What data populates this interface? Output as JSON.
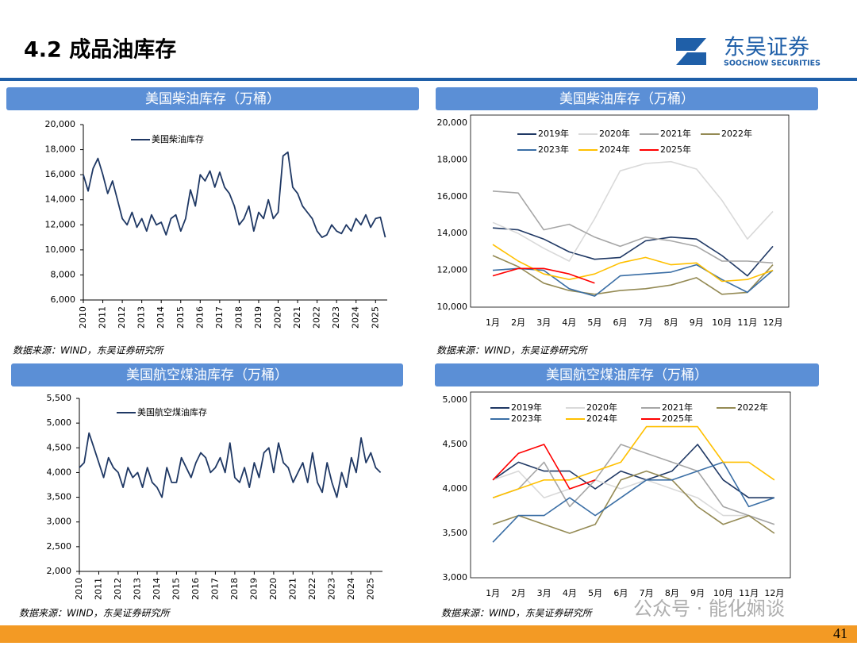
{
  "header": {
    "title": "4.2 成品油库存",
    "logo_cn": "东吴证券",
    "logo_en": "SOOCHOW SECURITIES"
  },
  "page_number": "41",
  "watermark": "公众号 · 能化娴谈",
  "chart_data": [
    {
      "type": "line",
      "title": "美国柴油库存（万桶）",
      "source": "数据来源：WIND，东吴证券研究所",
      "x": [
        2010,
        2010.25,
        2010.5,
        2010.75,
        2011,
        2011.25,
        2011.5,
        2011.75,
        2012,
        2012.25,
        2012.5,
        2012.75,
        2013,
        2013.25,
        2013.5,
        2013.75,
        2014,
        2014.25,
        2014.5,
        2014.75,
        2015,
        2015.25,
        2015.5,
        2015.75,
        2016,
        2016.25,
        2016.5,
        2016.75,
        2017,
        2017.25,
        2017.5,
        2017.75,
        2018,
        2018.25,
        2018.5,
        2018.75,
        2019,
        2019.25,
        2019.5,
        2019.75,
        2020,
        2020.25,
        2020.5,
        2020.75,
        2021,
        2021.25,
        2021.5,
        2021.75,
        2022,
        2022.25,
        2022.5,
        2022.75,
        2023,
        2023.25,
        2023.5,
        2023.75,
        2024,
        2024.25,
        2024.5,
        2024.75,
        2025,
        2025.25,
        2025.5
      ],
      "series": [
        {
          "name": "美国柴油库存",
          "color": "#1f3864",
          "values": [
            16000,
            14700,
            16500,
            17300,
            16000,
            14500,
            15500,
            14000,
            12500,
            12000,
            13000,
            11800,
            12500,
            11500,
            12800,
            12000,
            12200,
            11200,
            12500,
            12800,
            11500,
            12500,
            14800,
            13500,
            16000,
            15500,
            16300,
            15000,
            16200,
            15000,
            14500,
            13500,
            12000,
            12500,
            13500,
            11500,
            13000,
            12500,
            14000,
            12500,
            13000,
            17500,
            17800,
            15000,
            14500,
            13500,
            13000,
            12500,
            11500,
            11000,
            11200,
            12000,
            11500,
            11300,
            12000,
            11500,
            12500,
            12000,
            12800,
            11800,
            12500,
            12600,
            11000
          ]
        }
      ],
      "xlim": [
        2010,
        2025.6
      ],
      "xticks": [
        2010,
        2011,
        2012,
        2013,
        2014,
        2015,
        2016,
        2017,
        2018,
        2019,
        2020,
        2021,
        2022,
        2023,
        2024,
        2025
      ],
      "ylim": [
        6000,
        20000
      ],
      "yticks": [
        {
          "value": 6000,
          "label": "6,000"
        },
        {
          "value": 8000,
          "label": "8,000"
        },
        {
          "value": 10000,
          "label": "10,000"
        },
        {
          "value": 12000,
          "label": "12,000"
        },
        {
          "value": 14000,
          "label": "14,000"
        },
        {
          "value": 16000,
          "label": "16,000"
        },
        {
          "value": 18000,
          "label": "18,000"
        },
        {
          "value": 20000,
          "label": "20,000"
        }
      ],
      "grid": false
    },
    {
      "type": "line",
      "title": "美国柴油库存（万桶）",
      "source": "数据来源：WIND，东吴证券研究所",
      "categories": [
        "1月",
        "2月",
        "3月",
        "4月",
        "5月",
        "6月",
        "7月",
        "8月",
        "9月",
        "10月",
        "11月",
        "12月"
      ],
      "series": [
        {
          "name": "2019年",
          "color": "#1f3864",
          "values": [
            14300,
            14200,
            13700,
            13000,
            12600,
            12700,
            13600,
            13800,
            13700,
            12800,
            11700,
            13300
          ]
        },
        {
          "name": "2020年",
          "color": "#d9d9d9",
          "values": [
            14600,
            14000,
            13200,
            12500,
            14800,
            17400,
            17800,
            17900,
            17500,
            15800,
            13700,
            15200
          ]
        },
        {
          "name": "2021年",
          "color": "#a6a6a6",
          "values": [
            16300,
            16200,
            14200,
            14500,
            13800,
            13300,
            13800,
            13600,
            13300,
            12500,
            12500,
            12400
          ]
        },
        {
          "name": "2022年",
          "color": "#948a54",
          "values": [
            12800,
            12200,
            11300,
            10900,
            10700,
            10900,
            11000,
            11200,
            11600,
            10700,
            10800,
            12300
          ]
        },
        {
          "name": "2023年",
          "color": "#3a6ea5",
          "values": [
            12000,
            12100,
            12000,
            11000,
            10600,
            11700,
            11800,
            11900,
            12300,
            11500,
            10800,
            12000
          ]
        },
        {
          "name": "2024年",
          "color": "#ffc000",
          "values": [
            13400,
            12500,
            11800,
            11500,
            11800,
            12400,
            12700,
            12300,
            12400,
            11400,
            11500,
            12000
          ]
        },
        {
          "name": "2025年",
          "color": "#ff0000",
          "values": [
            11700,
            12100,
            12100,
            11800,
            11300,
            null,
            null,
            null,
            null,
            null,
            null,
            null
          ]
        }
      ],
      "ylim": [
        10000,
        20000
      ],
      "yticks": [
        {
          "value": 10000,
          "label": "10,000"
        },
        {
          "value": 12000,
          "label": "12,000"
        },
        {
          "value": 14000,
          "label": "14,000"
        },
        {
          "value": 16000,
          "label": "16,000"
        },
        {
          "value": 18000,
          "label": "18,000"
        },
        {
          "value": 20000,
          "label": "20,000"
        }
      ],
      "grid": false
    },
    {
      "type": "line",
      "title": "美国航空煤油库存（万桶）",
      "source": "数据来源：WIND，东吴证券研究所",
      "x": [
        2010,
        2010.25,
        2010.5,
        2010.75,
        2011,
        2011.25,
        2011.5,
        2011.75,
        2012,
        2012.25,
        2012.5,
        2012.75,
        2013,
        2013.25,
        2013.5,
        2013.75,
        2014,
        2014.25,
        2014.5,
        2014.75,
        2015,
        2015.25,
        2015.5,
        2015.75,
        2016,
        2016.25,
        2016.5,
        2016.75,
        2017,
        2017.25,
        2017.5,
        2017.75,
        2018,
        2018.25,
        2018.5,
        2018.75,
        2019,
        2019.25,
        2019.5,
        2019.75,
        2020,
        2020.25,
        2020.5,
        2020.75,
        2021,
        2021.25,
        2021.5,
        2021.75,
        2022,
        2022.25,
        2022.5,
        2022.75,
        2023,
        2023.25,
        2023.5,
        2023.75,
        2024,
        2024.25,
        2024.5,
        2024.75,
        2025,
        2025.25,
        2025.5
      ],
      "series": [
        {
          "name": "美国航空煤油库存",
          "color": "#1f3864",
          "values": [
            4100,
            4200,
            4800,
            4500,
            4200,
            3900,
            4300,
            4100,
            4000,
            3700,
            4100,
            3900,
            4000,
            3700,
            4100,
            3800,
            3700,
            3500,
            4100,
            3800,
            3800,
            4300,
            4100,
            3900,
            4200,
            4400,
            4300,
            4000,
            4100,
            4300,
            4000,
            4600,
            3900,
            3800,
            4100,
            3700,
            4200,
            3900,
            4400,
            4500,
            4000,
            4600,
            4200,
            4100,
            3800,
            4000,
            4200,
            3800,
            4400,
            3800,
            3600,
            4200,
            3800,
            3500,
            4000,
            3700,
            4300,
            4000,
            4700,
            4200,
            4400,
            4100,
            4000
          ]
        }
      ],
      "xlim": [
        2010,
        2025.6
      ],
      "xticks": [
        2010,
        2011,
        2012,
        2013,
        2014,
        2015,
        2016,
        2017,
        2018,
        2019,
        2020,
        2021,
        2022,
        2023,
        2024,
        2025
      ],
      "ylim": [
        2000,
        5500
      ],
      "yticks": [
        {
          "value": 2000,
          "label": "2,000"
        },
        {
          "value": 2500,
          "label": "2,500"
        },
        {
          "value": 3000,
          "label": "3,000"
        },
        {
          "value": 3500,
          "label": "3,500"
        },
        {
          "value": 4000,
          "label": "4,000"
        },
        {
          "value": 4500,
          "label": "4,500"
        },
        {
          "value": 5000,
          "label": "5,000"
        },
        {
          "value": 5500,
          "label": "5,500"
        }
      ],
      "grid": false
    },
    {
      "type": "line",
      "title": "美国航空煤油库存（万桶）",
      "source": "数据来源：WIND，东吴证券研究所",
      "categories": [
        "1月",
        "2月",
        "3月",
        "4月",
        "5月",
        "6月",
        "7月",
        "8月",
        "9月",
        "10月",
        "11月",
        "12月"
      ],
      "series": [
        {
          "name": "2019年",
          "color": "#1f3864",
          "values": [
            4100,
            4300,
            4200,
            4200,
            4000,
            4200,
            4100,
            4200,
            4500,
            4100,
            3900,
            3900
          ]
        },
        {
          "name": "2020年",
          "color": "#d9d9d9",
          "values": [
            4100,
            4200,
            3900,
            4000,
            4100,
            4000,
            4100,
            4000,
            3900,
            3700,
            3700,
            3600
          ]
        },
        {
          "name": "2021年",
          "color": "#a6a6a6",
          "values": [
            3900,
            4000,
            4300,
            3800,
            4100,
            4500,
            4400,
            4300,
            4200,
            3800,
            3700,
            3600
          ]
        },
        {
          "name": "2022年",
          "color": "#948a54",
          "values": [
            3600,
            3700,
            3600,
            3500,
            3600,
            4100,
            4200,
            4100,
            3800,
            3600,
            3700,
            3500
          ]
        },
        {
          "name": "2023年",
          "color": "#3a6ea5",
          "values": [
            3400,
            3700,
            3700,
            3900,
            3700,
            3900,
            4100,
            4100,
            4200,
            4300,
            3800,
            3900
          ]
        },
        {
          "name": "2024年",
          "color": "#ffc000",
          "values": [
            3900,
            4000,
            4100,
            4100,
            4200,
            4300,
            4700,
            4700,
            4700,
            4300,
            4300,
            4100
          ]
        },
        {
          "name": "2025年",
          "color": "#ff0000",
          "values": [
            4100,
            4400,
            4500,
            4000,
            4100,
            null,
            null,
            null,
            null,
            null,
            null,
            null
          ]
        }
      ],
      "ylim": [
        3000,
        5000
      ],
      "yticks": [
        {
          "value": 3000,
          "label": "3,000"
        },
        {
          "value": 3500,
          "label": "3,500"
        },
        {
          "value": 4000,
          "label": "4,000"
        },
        {
          "value": 4500,
          "label": "4,500"
        },
        {
          "value": 5000,
          "label": "5,000"
        }
      ],
      "grid": false
    }
  ]
}
